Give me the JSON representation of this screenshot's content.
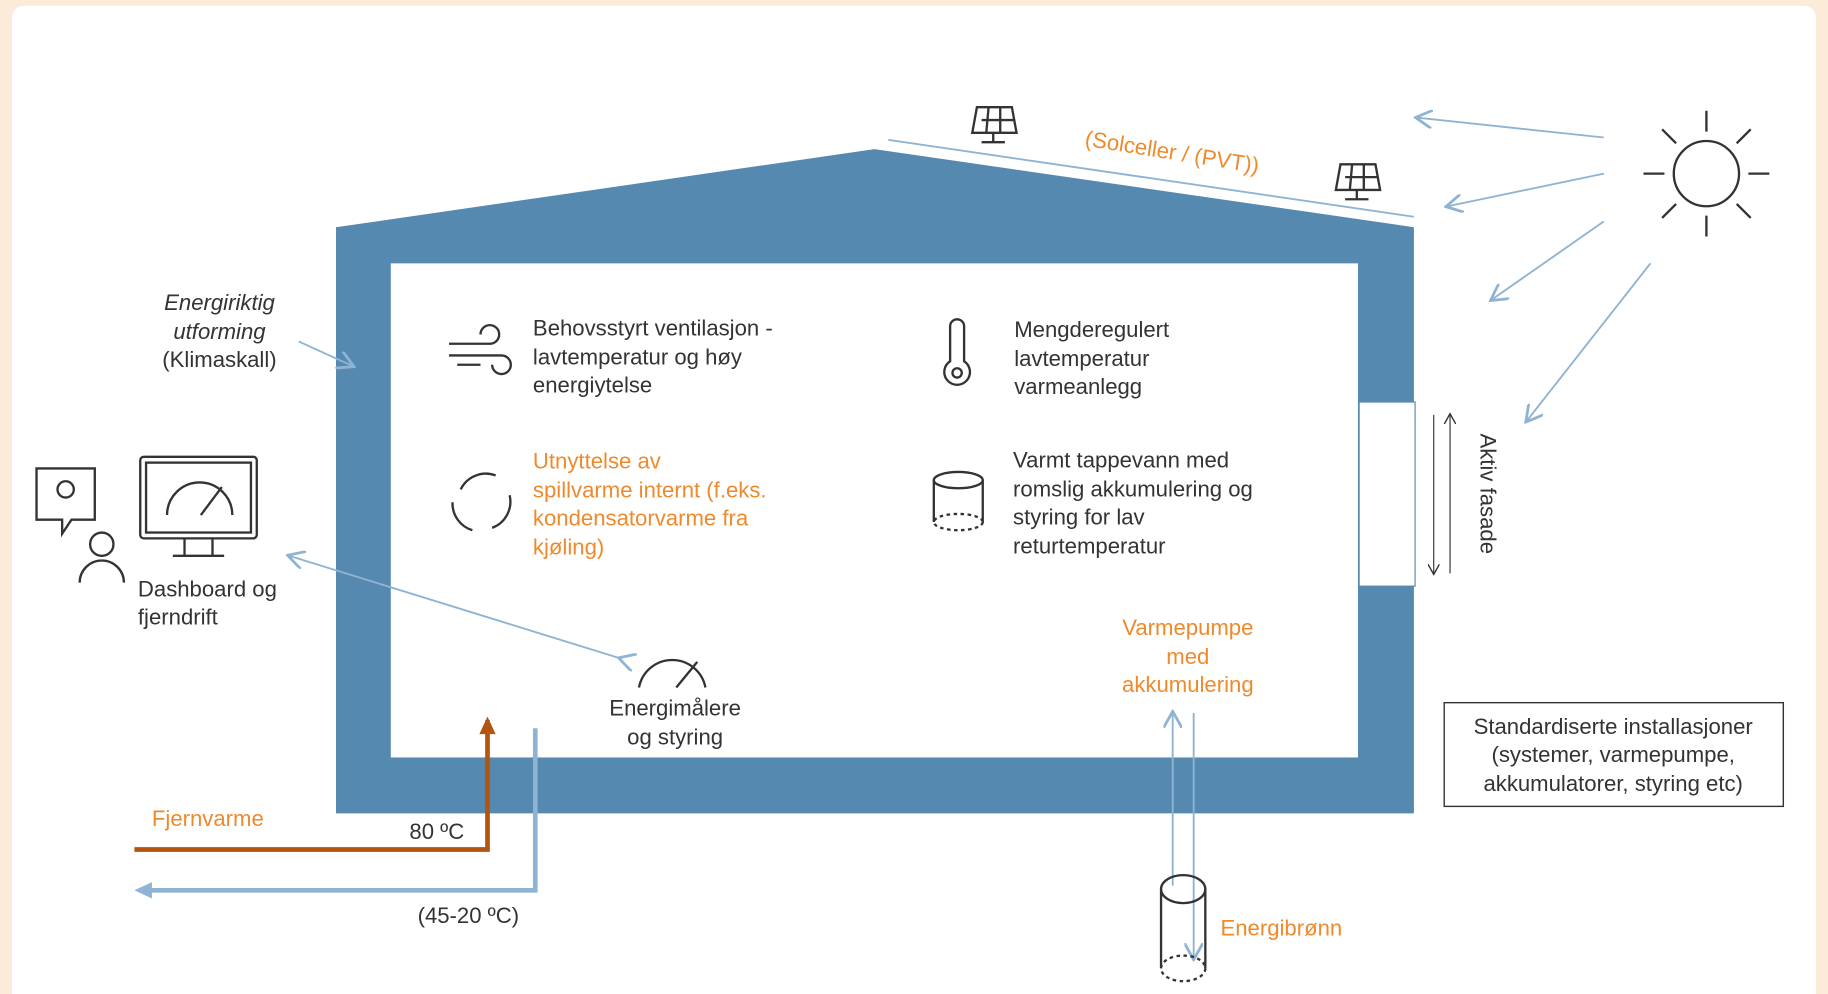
{
  "labels": {
    "envelope": [
      "Energiriktig",
      "utforming",
      "(Klimaskall)"
    ],
    "solar": "(Solceller / (PVT))",
    "ventilation": [
      "Behovsstyrt ventilasjon -",
      "lavtemperatur og høy",
      "energiytelse"
    ],
    "heating": [
      "Mengderegulert",
      "lavtemperatur",
      "varmeanlegg"
    ],
    "waste_heat": [
      "Utnyttelse av",
      "spillvarme internt (f.eks.",
      "kondensatorvarme fra",
      "kjøling)"
    ],
    "hot_water": [
      "Varmt tappevann med",
      "romslig akkumulering og",
      "styring for lav",
      "returtemperatur"
    ],
    "facade": "Aktiv fasade",
    "dashboard": [
      "Dashboard og",
      "fjerndrift"
    ],
    "meters": [
      "Energimålere",
      "og styring"
    ],
    "heat_pump": [
      "Varmepumpe",
      "med",
      "akkumulering"
    ],
    "standard": [
      "Standardiserte installasjoner",
      "(systemer, varmepumpe,",
      "akkumulatorer, styring etc)"
    ],
    "district_heating": "Fjernvarme",
    "supply_temp": "80 ºC",
    "return_temp": "(45-20 ºC)",
    "borehole": "Energibrønn"
  }
}
